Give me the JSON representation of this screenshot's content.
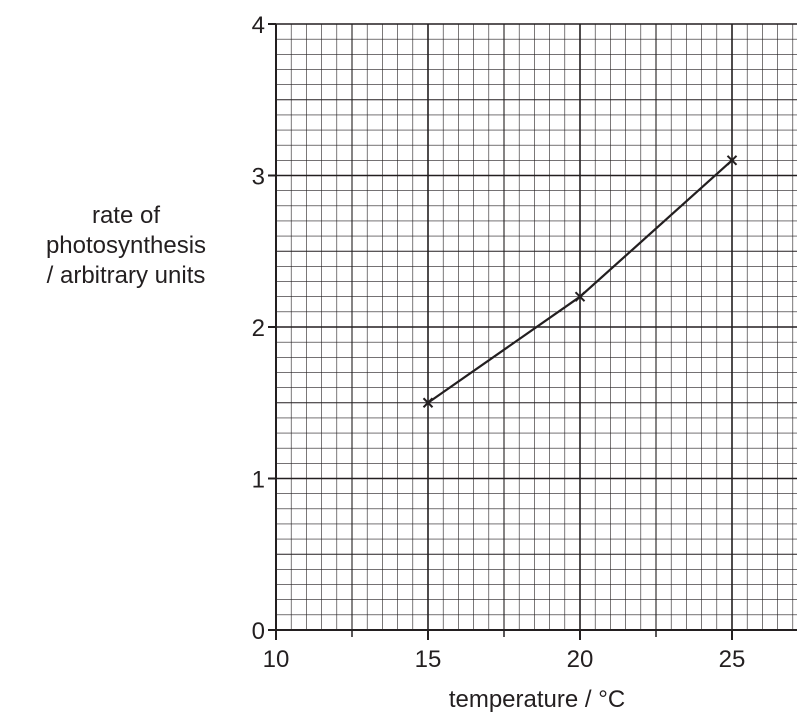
{
  "chart_data": {
    "type": "line",
    "title": "",
    "xlabel": "temperature / °C",
    "ylabel_lines": [
      "rate of",
      "photosynthesis",
      "/ arbitrary units"
    ],
    "xlim": [
      10,
      27
    ],
    "ylim": [
      0,
      4
    ],
    "x_ticks": [
      10,
      15,
      20,
      25
    ],
    "x_tick_labels": [
      "10",
      "15",
      "20",
      "25"
    ],
    "x_minor_ticks": [
      12.5,
      17.5,
      22.5
    ],
    "y_ticks": [
      0,
      1,
      2,
      3,
      4
    ],
    "y_tick_labels": [
      "0",
      "1",
      "2",
      "3",
      "4"
    ],
    "grid": true,
    "grid_fine_step_x": 0.5,
    "grid_fine_step_y": 0.1,
    "grid_medium_step_x": 2.5,
    "grid_medium_step_y": 0.5,
    "series": [
      {
        "marker": "cross",
        "points": [
          {
            "x": 15,
            "y": 1.5
          },
          {
            "x": 20,
            "y": 2.2
          },
          {
            "x": 25,
            "y": 3.1
          }
        ]
      }
    ],
    "colors": {
      "line": "#231f20",
      "grid_fine": "#231f20",
      "grid_major": "#231f20"
    }
  }
}
